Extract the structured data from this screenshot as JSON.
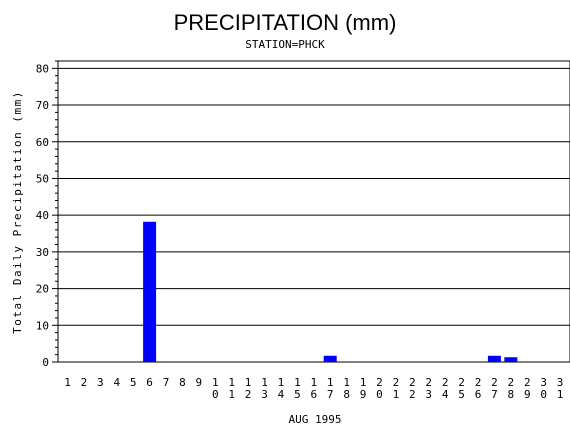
{
  "chart_data": {
    "type": "bar",
    "title": "PRECIPITATION (mm)",
    "subtitle": "STATION=PHCK",
    "xlabel": "AUG 1995",
    "ylabel": "Total Daily Precipitation (mm)",
    "ylim": [
      0,
      82
    ],
    "yticks": [
      0,
      10,
      20,
      30,
      40,
      50,
      60,
      70,
      80
    ],
    "grid": true,
    "bar_color": "#0000ff",
    "categories": [
      "1",
      "2",
      "3",
      "4",
      "5",
      "6",
      "7",
      "8",
      "9",
      "10",
      "11",
      "12",
      "13",
      "14",
      "15",
      "16",
      "17",
      "18",
      "19",
      "20",
      "21",
      "22",
      "23",
      "24",
      "25",
      "26",
      "27",
      "28",
      "29",
      "30",
      "31"
    ],
    "values": [
      0,
      0,
      0,
      0,
      0,
      38.2,
      0,
      0,
      0,
      0,
      0,
      0,
      0,
      0,
      0,
      0,
      1.7,
      0,
      0,
      0,
      0,
      0,
      0,
      0,
      0,
      0,
      1.7,
      1.3,
      0,
      0,
      0
    ]
  }
}
